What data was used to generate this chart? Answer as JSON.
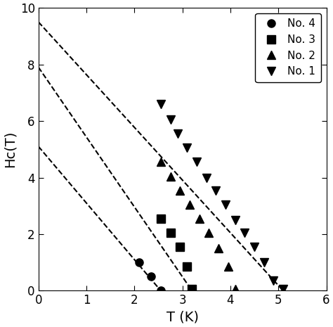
{
  "title": "",
  "xlabel": "T (K)",
  "ylabel": "Hc(T)",
  "xlim": [
    0,
    6
  ],
  "ylim": [
    0,
    10
  ],
  "xticks": [
    0,
    1,
    2,
    3,
    4,
    5,
    6
  ],
  "yticks": [
    0,
    2,
    4,
    6,
    8,
    10
  ],
  "background_color": "#ffffff",
  "series": [
    {
      "label": "No. 4",
      "marker": "o",
      "color": "black",
      "T": [
        2.1,
        2.35,
        2.55
      ],
      "Hc": [
        1.0,
        0.5,
        0.0
      ]
    },
    {
      "label": "No. 3",
      "marker": "s",
      "color": "black",
      "T": [
        2.55,
        2.75,
        2.95,
        3.1,
        3.2
      ],
      "Hc": [
        2.55,
        2.05,
        1.55,
        0.85,
        0.05
      ]
    },
    {
      "label": "No. 2",
      "marker": "^",
      "color": "black",
      "T": [
        2.55,
        2.75,
        2.95,
        3.15,
        3.35,
        3.55,
        3.75,
        3.95,
        4.1
      ],
      "Hc": [
        4.55,
        4.05,
        3.55,
        3.05,
        2.55,
        2.05,
        1.5,
        0.85,
        0.05
      ]
    },
    {
      "label": "No. 1",
      "marker": "v",
      "color": "black",
      "T": [
        2.55,
        2.75,
        2.9,
        3.1,
        3.3,
        3.5,
        3.7,
        3.9,
        4.1,
        4.3,
        4.5,
        4.7,
        4.9,
        5.1
      ],
      "Hc": [
        6.6,
        6.05,
        5.55,
        5.05,
        4.55,
        4.0,
        3.55,
        3.05,
        2.5,
        2.05,
        1.55,
        1.0,
        0.35,
        0.05
      ]
    }
  ],
  "dashed_curves": [
    {
      "Tc": 2.55,
      "Hc2_0": 5.1,
      "exponent": 1.0
    },
    {
      "Tc": 3.2,
      "Hc2_0": 7.9,
      "exponent": 1.0
    },
    {
      "Tc": 5.1,
      "Hc2_0": 9.5,
      "exponent": 1.0
    }
  ],
  "legend_loc": "upper right",
  "markersize": 8,
  "linewidth": 1.5,
  "fontsize_labels": 14,
  "fontsize_ticks": 12,
  "fontsize_legend": 11
}
